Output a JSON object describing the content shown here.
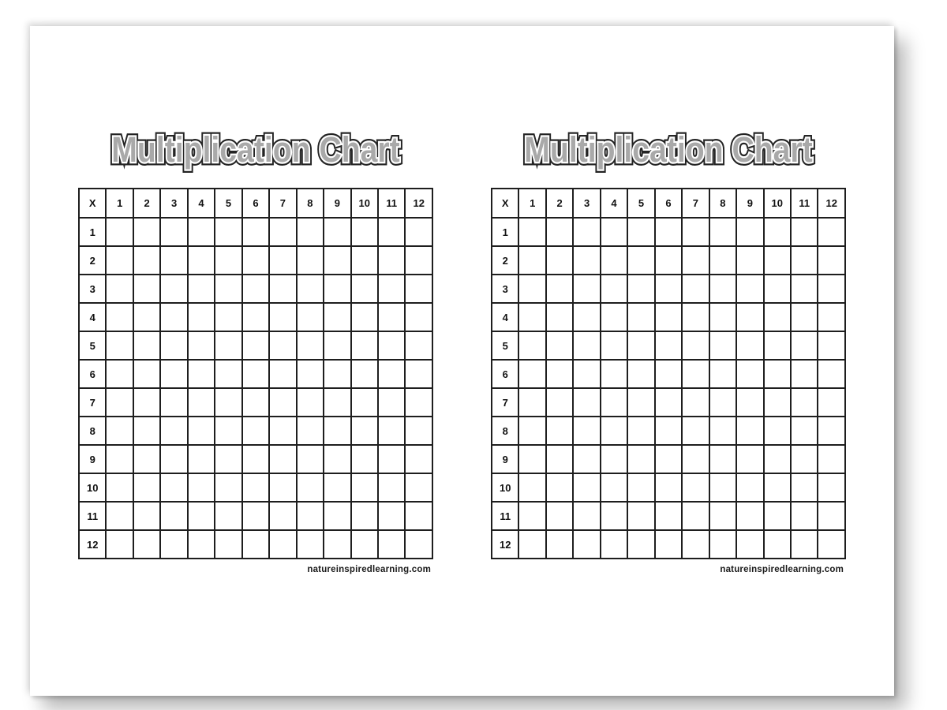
{
  "charts": [
    {
      "title": "Multiplication Chart",
      "footer": "natureinspiredlearning.com",
      "grid": {
        "corner_label": "X",
        "column_headers": [
          "1",
          "2",
          "3",
          "4",
          "5",
          "6",
          "7",
          "8",
          "9",
          "10",
          "11",
          "12"
        ],
        "row_headers": [
          "1",
          "2",
          "3",
          "4",
          "5",
          "6",
          "7",
          "8",
          "9",
          "10",
          "11",
          "12"
        ],
        "cells_blank": true
      }
    },
    {
      "title": "Multiplication Chart",
      "footer": "natureinspiredlearning.com",
      "grid": {
        "corner_label": "X",
        "column_headers": [
          "1",
          "2",
          "3",
          "4",
          "5",
          "6",
          "7",
          "8",
          "9",
          "10",
          "11",
          "12"
        ],
        "row_headers": [
          "1",
          "2",
          "3",
          "4",
          "5",
          "6",
          "7",
          "8",
          "9",
          "10",
          "11",
          "12"
        ],
        "cells_blank": true
      }
    }
  ],
  "colors": {
    "title_fill": "#a9a9a9",
    "title_inner_rim": "#ffffff",
    "title_outline": "#242424",
    "grid_border": "#1e1e1e",
    "text": "#111111"
  }
}
